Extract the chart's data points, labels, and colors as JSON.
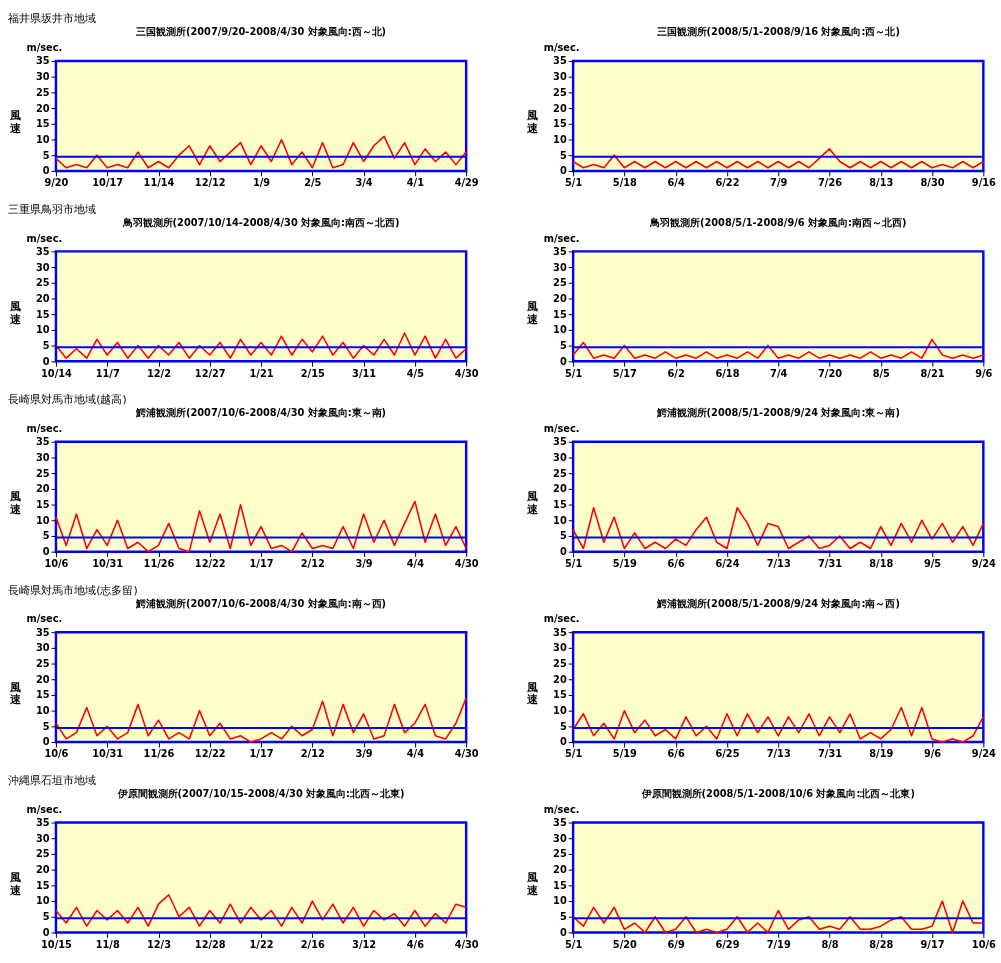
{
  "chart_data": [
    {
      "type": "line",
      "title": "三国観測所(2007/9/20-2008/4/30  対象風向:西～北)",
      "ylabel": "風速",
      "annotations": [
        "福井県坂井市地域",
        "m/sec."
      ],
      "categories": [
        "9/20",
        null,
        null,
        null,
        null,
        "10/17",
        null,
        null,
        null,
        null,
        "11/14",
        null,
        null,
        null,
        null,
        "12/12",
        null,
        null,
        null,
        null,
        "1/9",
        null,
        null,
        null,
        null,
        "2/5",
        null,
        null,
        null,
        null,
        "3/4",
        null,
        null,
        null,
        null,
        "4/1",
        null,
        null,
        null,
        null,
        "4/29"
      ],
      "series": [
        {
          "color": "#ff0000",
          "values": [
            4,
            1,
            2,
            1,
            5,
            1,
            2,
            1,
            6,
            1,
            3,
            1,
            5,
            8,
            2,
            8,
            3,
            6,
            9,
            2,
            8,
            3,
            10,
            2,
            6,
            1,
            9,
            1,
            2,
            9,
            3,
            8,
            11,
            4,
            9,
            2,
            7,
            3,
            6,
            2,
            6
          ]
        }
      ],
      "ylim": [
        0,
        35
      ],
      "yticks": [
        0,
        5,
        10,
        15,
        20,
        25,
        30,
        35
      ],
      "ref_lines": [
        {
          "axis": "y",
          "value": 4.5,
          "color": "#0000ff"
        }
      ],
      "grid": false
    },
    {
      "type": "line",
      "title": "三国観測所(2008/5/1-2008/9/16  対象風向:西～北)",
      "ylabel": "風速",
      "annotations": [
        "m/sec."
      ],
      "categories": [
        "5/1",
        null,
        null,
        null,
        null,
        "5/18",
        null,
        null,
        null,
        null,
        "6/4",
        null,
        null,
        null,
        null,
        "6/22",
        null,
        null,
        null,
        null,
        "7/9",
        null,
        null,
        null,
        null,
        "7/26",
        null,
        null,
        null,
        null,
        "8/13",
        null,
        null,
        null,
        null,
        "8/30",
        null,
        null,
        null,
        null,
        "9/16"
      ],
      "series": [
        {
          "color": "#ff0000",
          "values": [
            3,
            1,
            2,
            1,
            5,
            1,
            3,
            1,
            3,
            1,
            3,
            1,
            3,
            1,
            3,
            1,
            3,
            1,
            3,
            1,
            3,
            1,
            3,
            1,
            4,
            7,
            3,
            1,
            3,
            1,
            3,
            1,
            3,
            1,
            3,
            1,
            2,
            1,
            3,
            1,
            3
          ]
        }
      ],
      "ylim": [
        0,
        35
      ],
      "yticks": [
        0,
        5,
        10,
        15,
        20,
        25,
        30,
        35
      ],
      "ref_lines": [
        {
          "axis": "y",
          "value": 4.5,
          "color": "#0000ff"
        }
      ],
      "grid": false
    },
    {
      "type": "line",
      "title": "鳥羽観測所(2007/10/14-2008/4/30  対象風向:南西～北西)",
      "ylabel": "風速",
      "annotations": [
        "三重県鳥羽市地域",
        "m/sec."
      ],
      "categories": [
        "10/14",
        null,
        null,
        null,
        null,
        "11/7",
        null,
        null,
        null,
        null,
        "12/2",
        null,
        null,
        null,
        null,
        "12/27",
        null,
        null,
        null,
        null,
        "1/21",
        null,
        null,
        null,
        null,
        "2/15",
        null,
        null,
        null,
        null,
        "3/11",
        null,
        null,
        null,
        null,
        "4/5",
        null,
        null,
        null,
        null,
        "4/30"
      ],
      "series": [
        {
          "color": "#ff0000",
          "values": [
            5,
            1,
            4,
            1,
            7,
            2,
            6,
            1,
            5,
            1,
            5,
            2,
            6,
            1,
            5,
            2,
            6,
            1,
            7,
            2,
            6,
            2,
            8,
            2,
            7,
            3,
            8,
            2,
            6,
            1,
            5,
            2,
            7,
            2,
            9,
            2,
            8,
            1,
            7,
            1,
            4
          ]
        }
      ],
      "ylim": [
        0,
        35
      ],
      "yticks": [
        0,
        5,
        10,
        15,
        20,
        25,
        30,
        35
      ],
      "ref_lines": [
        {
          "axis": "y",
          "value": 4.5,
          "color": "#0000ff"
        }
      ],
      "grid": false
    },
    {
      "type": "line",
      "title": "鳥羽観測所(2008/5/1-2008/9/6  対象風向:南西～北西)",
      "ylabel": "風速",
      "annotations": [
        "m/sec."
      ],
      "categories": [
        "5/1",
        null,
        null,
        null,
        null,
        "5/17",
        null,
        null,
        null,
        null,
        "6/2",
        null,
        null,
        null,
        null,
        "6/18",
        null,
        null,
        null,
        null,
        "7/4",
        null,
        null,
        null,
        null,
        "7/20",
        null,
        null,
        null,
        null,
        "8/5",
        null,
        null,
        null,
        null,
        "8/21",
        null,
        null,
        null,
        null,
        "9/6"
      ],
      "series": [
        {
          "color": "#ff0000",
          "values": [
            2,
            6,
            1,
            2,
            1,
            5,
            1,
            2,
            1,
            3,
            1,
            2,
            1,
            3,
            1,
            2,
            1,
            3,
            1,
            5,
            1,
            2,
            1,
            3,
            1,
            2,
            1,
            2,
            1,
            3,
            1,
            2,
            1,
            3,
            1,
            7,
            2,
            1,
            2,
            1,
            2
          ]
        }
      ],
      "ylim": [
        0,
        35
      ],
      "yticks": [
        0,
        5,
        10,
        15,
        20,
        25,
        30,
        35
      ],
      "ref_lines": [
        {
          "axis": "y",
          "value": 4.5,
          "color": "#0000ff"
        }
      ],
      "grid": false
    },
    {
      "type": "line",
      "title": "鰐浦観測所(2007/10/6-2008/4/30  対象風向:東～南)",
      "ylabel": "風速",
      "annotations": [
        "長崎県対馬市地域(越高)",
        "m/sec."
      ],
      "categories": [
        "10/6",
        null,
        null,
        null,
        null,
        "10/31",
        null,
        null,
        null,
        null,
        "11/26",
        null,
        null,
        null,
        null,
        "12/22",
        null,
        null,
        null,
        null,
        "1/17",
        null,
        null,
        null,
        null,
        "2/12",
        null,
        null,
        null,
        null,
        "3/9",
        null,
        null,
        null,
        null,
        "4/4",
        null,
        null,
        null,
        null,
        "4/30"
      ],
      "series": [
        {
          "color": "#ff0000",
          "values": [
            11,
            2,
            12,
            1,
            7,
            2,
            10,
            1,
            3,
            0,
            2,
            9,
            1,
            0,
            13,
            3,
            12,
            1,
            15,
            2,
            8,
            1,
            2,
            0,
            6,
            1,
            2,
            1,
            8,
            1,
            12,
            3,
            10,
            2,
            9,
            16,
            3,
            12,
            2,
            8,
            1
          ]
        }
      ],
      "ylim": [
        0,
        35
      ],
      "yticks": [
        0,
        5,
        10,
        15,
        20,
        25,
        30,
        35
      ],
      "ref_lines": [
        {
          "axis": "y",
          "value": 4.5,
          "color": "#0000ff"
        }
      ],
      "grid": false
    },
    {
      "type": "line",
      "title": "鰐浦観測所(2008/5/1-2008/9/24  対象風向:東～南)",
      "ylabel": "風速",
      "annotations": [
        "m/sec."
      ],
      "categories": [
        "5/1",
        null,
        null,
        null,
        null,
        "5/19",
        null,
        null,
        null,
        null,
        "6/6",
        null,
        null,
        null,
        null,
        "6/24",
        null,
        null,
        null,
        null,
        "7/13",
        null,
        null,
        null,
        null,
        "7/31",
        null,
        null,
        null,
        null,
        "8/18",
        null,
        null,
        null,
        null,
        "9/5",
        null,
        null,
        null,
        null,
        "9/24"
      ],
      "series": [
        {
          "color": "#ff0000",
          "values": [
            7,
            1,
            14,
            3,
            11,
            1,
            6,
            1,
            3,
            1,
            4,
            2,
            7,
            11,
            3,
            1,
            14,
            9,
            2,
            9,
            8,
            1,
            3,
            5,
            1,
            2,
            5,
            1,
            3,
            1,
            8,
            2,
            9,
            3,
            10,
            4,
            9,
            3,
            8,
            2,
            9
          ]
        }
      ],
      "ylim": [
        0,
        35
      ],
      "yticks": [
        0,
        5,
        10,
        15,
        20,
        25,
        30,
        35
      ],
      "ref_lines": [
        {
          "axis": "y",
          "value": 4.5,
          "color": "#0000ff"
        }
      ],
      "grid": false
    },
    {
      "type": "line",
      "title": "鰐浦観測所(2007/10/6-2008/4/30  対象風向:南～西)",
      "ylabel": "風速",
      "annotations": [
        "長崎県対馬市地域(志多留)",
        "m/sec."
      ],
      "categories": [
        "10/6",
        null,
        null,
        null,
        null,
        "10/31",
        null,
        null,
        null,
        null,
        "11/26",
        null,
        null,
        null,
        null,
        "12/22",
        null,
        null,
        null,
        null,
        "1/17",
        null,
        null,
        null,
        null,
        "2/12",
        null,
        null,
        null,
        null,
        "3/9",
        null,
        null,
        null,
        null,
        "4/4",
        null,
        null,
        null,
        null,
        "4/30"
      ],
      "series": [
        {
          "color": "#ff0000",
          "values": [
            6,
            1,
            3,
            11,
            2,
            5,
            1,
            3,
            12,
            2,
            7,
            1,
            3,
            1,
            10,
            2,
            6,
            1,
            2,
            0,
            1,
            3,
            1,
            5,
            2,
            4,
            13,
            2,
            12,
            3,
            9,
            1,
            2,
            12,
            3,
            6,
            12,
            2,
            1,
            6,
            14
          ]
        }
      ],
      "ylim": [
        0,
        35
      ],
      "yticks": [
        0,
        5,
        10,
        15,
        20,
        25,
        30,
        35
      ],
      "ref_lines": [
        {
          "axis": "y",
          "value": 4.5,
          "color": "#0000ff"
        }
      ],
      "grid": false
    },
    {
      "type": "line",
      "title": "鰐浦観測所(2008/5/1-2008/9/24  対象風向:南～西)",
      "ylabel": "風速",
      "annotations": [
        "m/sec."
      ],
      "categories": [
        "5/1",
        null,
        null,
        null,
        null,
        "5/19",
        null,
        null,
        null,
        null,
        "6/6",
        null,
        null,
        null,
        null,
        "6/25",
        null,
        null,
        null,
        null,
        "7/13",
        null,
        null,
        null,
        null,
        "7/31",
        null,
        null,
        null,
        null,
        "8/19",
        null,
        null,
        null,
        null,
        "9/6",
        null,
        null,
        null,
        null,
        "9/24"
      ],
      "series": [
        {
          "color": "#ff0000",
          "values": [
            4,
            9,
            2,
            6,
            1,
            10,
            3,
            7,
            2,
            4,
            1,
            8,
            2,
            5,
            1,
            9,
            2,
            9,
            3,
            8,
            2,
            8,
            3,
            9,
            2,
            8,
            3,
            9,
            1,
            3,
            1,
            4,
            11,
            2,
            11,
            1,
            0,
            1,
            0,
            2,
            8
          ]
        }
      ],
      "ylim": [
        0,
        35
      ],
      "yticks": [
        0,
        5,
        10,
        15,
        20,
        25,
        30,
        35
      ],
      "ref_lines": [
        {
          "axis": "y",
          "value": 4.5,
          "color": "#0000ff"
        }
      ],
      "grid": false
    },
    {
      "type": "line",
      "title": "伊原間観測所(2007/10/15-2008/4/30  対象風向:北西～北東)",
      "ylabel": "風速",
      "annotations": [
        "沖縄県石垣市地域",
        "m/sec."
      ],
      "categories": [
        "10/15",
        null,
        null,
        null,
        null,
        "11/8",
        null,
        null,
        null,
        null,
        "12/3",
        null,
        null,
        null,
        null,
        "12/28",
        null,
        null,
        null,
        null,
        "1/22",
        null,
        null,
        null,
        null,
        "2/16",
        null,
        null,
        null,
        null,
        "3/12",
        null,
        null,
        null,
        null,
        "4/6",
        null,
        null,
        null,
        null,
        "4/30"
      ],
      "series": [
        {
          "color": "#ff0000",
          "values": [
            7,
            3,
            8,
            2,
            7,
            4,
            7,
            3,
            8,
            2,
            9,
            12,
            5,
            8,
            2,
            7,
            3,
            9,
            3,
            8,
            4,
            7,
            2,
            8,
            3,
            10,
            4,
            9,
            3,
            8,
            2,
            7,
            4,
            6,
            2,
            7,
            2,
            6,
            3,
            9,
            8
          ]
        }
      ],
      "ylim": [
        0,
        35
      ],
      "yticks": [
        0,
        5,
        10,
        15,
        20,
        25,
        30,
        35
      ],
      "ref_lines": [
        {
          "axis": "y",
          "value": 4.5,
          "color": "#0000ff"
        }
      ],
      "grid": false
    },
    {
      "type": "line",
      "title": "伊原間観測所(2008/5/1-2008/10/6  対象風向:北西～北東)",
      "ylabel": "風速",
      "annotations": [
        "m/sec."
      ],
      "categories": [
        "5/1",
        null,
        null,
        null,
        null,
        "5/20",
        null,
        null,
        null,
        null,
        "6/9",
        null,
        null,
        null,
        null,
        "6/29",
        null,
        null,
        null,
        null,
        "7/19",
        null,
        null,
        null,
        null,
        "8/8",
        null,
        null,
        null,
        null,
        "8/28",
        null,
        null,
        null,
        null,
        "9/17",
        null,
        null,
        null,
        null,
        "10/6"
      ],
      "series": [
        {
          "color": "#ff0000",
          "values": [
            5,
            2,
            8,
            3,
            8,
            1,
            3,
            0,
            5,
            0,
            1,
            5,
            0,
            1,
            0,
            1,
            5,
            0,
            3,
            0,
            7,
            1,
            4,
            5,
            1,
            2,
            1,
            5,
            1,
            1,
            2,
            4,
            5,
            1,
            1,
            2,
            10,
            0,
            10,
            3,
            3
          ]
        }
      ],
      "ylim": [
        0,
        35
      ],
      "yticks": [
        0,
        5,
        10,
        15,
        20,
        25,
        30,
        35
      ],
      "ref_lines": [
        {
          "axis": "y",
          "value": 4.5,
          "color": "#0000ff"
        }
      ],
      "grid": false
    }
  ]
}
